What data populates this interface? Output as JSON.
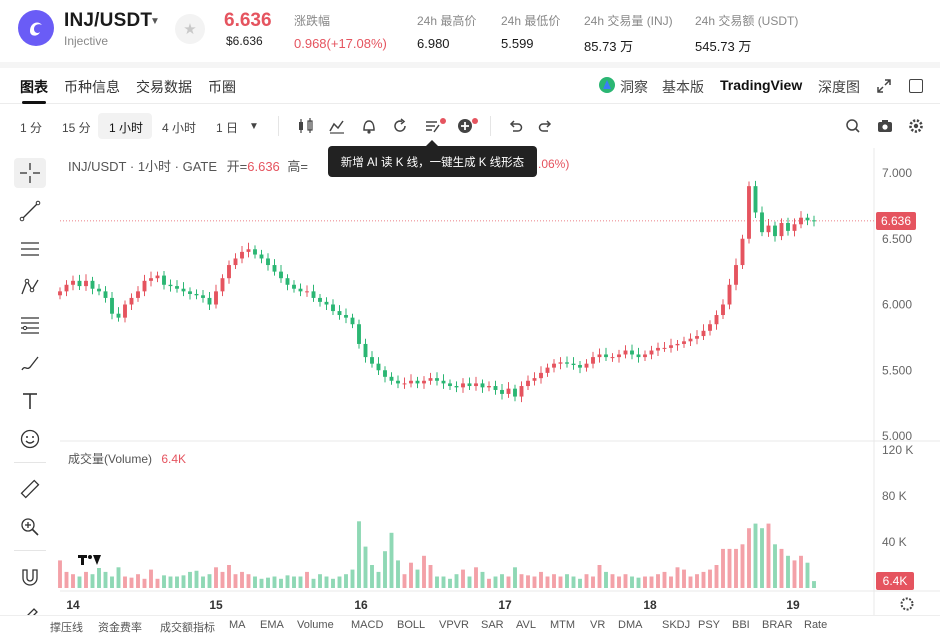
{
  "header": {
    "pair": "INJ/USDT",
    "name": "Injective",
    "price": "6.636",
    "price_usd": "$6.636",
    "stats": [
      {
        "label": "涨跌幅",
        "value": "0.968(+17.08%)",
        "red": true
      },
      {
        "label": "24h 最高价",
        "value": "6.980"
      },
      {
        "label": "24h 最低价",
        "value": "5.599"
      },
      {
        "label": "24h 交易量 (INJ)",
        "value": "85.73 万"
      },
      {
        "label": "24h 交易额 (USDT)",
        "value": "545.73 万"
      }
    ]
  },
  "tabs": [
    "图表",
    "币种信息",
    "交易数据",
    "币圈"
  ],
  "right_tabs": {
    "insight": "洞察",
    "basic": "基本版",
    "tradingview": "TradingView",
    "depth": "深度图"
  },
  "timeframes": [
    "1 分",
    "15 分",
    "1 小时",
    "4 小时",
    "1 日"
  ],
  "chart": {
    "legend_title": "INJ/USDT · 1小时 · GATE",
    "open_label": "开=",
    "open_value": "6.636",
    "high_label": "高=",
    "change_tail": ".06%)",
    "current_price_tag": "6.636",
    "volume_title": "成交量(Volume)",
    "volume_value": "6.4K",
    "volume_tag": "6.4K",
    "y_ticks": [
      "7.000",
      "6.500",
      "6.000",
      "5.500",
      "5.000"
    ],
    "vol_ticks": [
      "120 K",
      "80 K",
      "40 K"
    ],
    "x_ticks": [
      "14",
      "15",
      "16",
      "17",
      "18",
      "19"
    ]
  },
  "tooltip": "新增 AI 读 K 线，一键生成 K 线形态",
  "indicators": [
    "撑压线",
    "资金费率",
    "成交额指标",
    "MA",
    "EMA",
    "Volume",
    "MACD",
    "BOLL",
    "VPVR",
    "SAR",
    "AVL",
    "MTM",
    "VR",
    "DMA",
    "SKDJ",
    "PSY",
    "BBI",
    "BRAR",
    "Rate"
  ],
  "chart_data": {
    "type": "candlestick",
    "pair": "INJ/USDT",
    "interval": "1小时",
    "exchange": "GATE",
    "x_labels": [
      "14",
      "15",
      "16",
      "17",
      "18",
      "19"
    ],
    "ylim": [
      5.0,
      7.0
    ],
    "vol_ylim": [
      0,
      120000
    ],
    "closes": [
      6.1,
      6.15,
      6.18,
      6.14,
      6.18,
      6.12,
      6.1,
      6.05,
      5.93,
      5.9,
      6.0,
      6.05,
      6.1,
      6.18,
      6.2,
      6.22,
      6.15,
      6.14,
      6.12,
      6.1,
      6.08,
      6.07,
      6.05,
      6.0,
      6.1,
      6.2,
      6.3,
      6.35,
      6.4,
      6.42,
      6.38,
      6.35,
      6.3,
      6.25,
      6.2,
      6.15,
      6.12,
      6.1,
      6.1,
      6.05,
      6.02,
      6.0,
      5.95,
      5.92,
      5.9,
      5.85,
      5.7,
      5.6,
      5.55,
      5.5,
      5.45,
      5.42,
      5.4,
      5.4,
      5.42,
      5.4,
      5.42,
      5.44,
      5.42,
      5.4,
      5.38,
      5.37,
      5.4,
      5.38,
      5.4,
      5.37,
      5.38,
      5.35,
      5.32,
      5.36,
      5.3,
      5.38,
      5.42,
      5.44,
      5.48,
      5.52,
      5.55,
      5.56,
      5.55,
      5.54,
      5.52,
      5.55,
      5.6,
      5.62,
      5.6,
      5.6,
      5.62,
      5.65,
      5.62,
      5.6,
      5.62,
      5.65,
      5.67,
      5.67,
      5.69,
      5.7,
      5.72,
      5.74,
      5.76,
      5.8,
      5.85,
      5.92,
      6.0,
      6.15,
      6.3,
      6.5,
      6.9,
      6.7,
      6.55,
      6.6,
      6.52,
      6.62,
      6.56,
      6.61,
      6.66,
      6.64,
      6.636
    ],
    "volumes_k": [
      24,
      14,
      12,
      10,
      14,
      12,
      20,
      14,
      10,
      18,
      10,
      9,
      12,
      8,
      16,
      8,
      11,
      10,
      10,
      11,
      14,
      15,
      10,
      12,
      18,
      14,
      20,
      12,
      14,
      12,
      10,
      8,
      9,
      10,
      8,
      11,
      10,
      10,
      14,
      8,
      12,
      10,
      8,
      10,
      12,
      16,
      58,
      36,
      20,
      14,
      32,
      48,
      24,
      12,
      22,
      16,
      28,
      20,
      10,
      10,
      8,
      12,
      16,
      10,
      18,
      14,
      8,
      10,
      12,
      10,
      18,
      12,
      11,
      10,
      14,
      10,
      12,
      10,
      12,
      10,
      8,
      12,
      10,
      20,
      14,
      12,
      10,
      12,
      10,
      9,
      10,
      10,
      12,
      14,
      10,
      18,
      16,
      10,
      12,
      14,
      16,
      20,
      34,
      34,
      34,
      38,
      52,
      56,
      52,
      56,
      38,
      34,
      28,
      24,
      28,
      22,
      6
    ]
  }
}
